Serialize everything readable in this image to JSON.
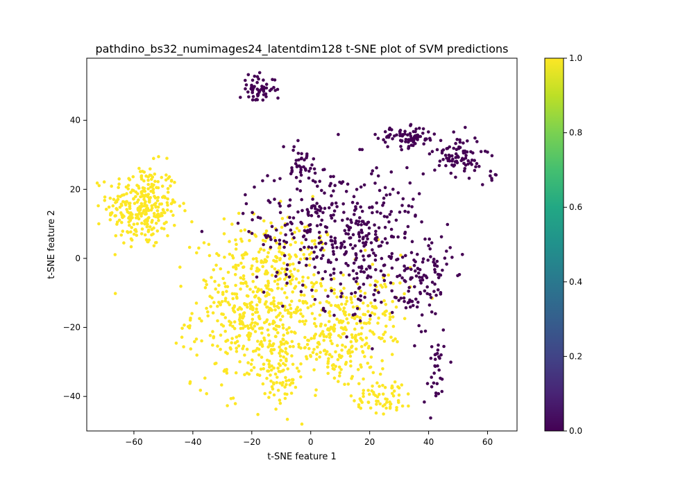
{
  "chart_data": {
    "type": "scatter",
    "title": "pathdino_bs32_numimages24_latentdim128 t-SNE plot of SVM predictions",
    "xlabel": "t-SNE feature 1",
    "ylabel": "t-SNE feature 2",
    "xlim": [
      -76,
      70
    ],
    "ylim": [
      -50,
      58
    ],
    "xticks": [
      -60,
      -40,
      -20,
      0,
      20,
      40,
      60
    ],
    "yticks": [
      -40,
      -20,
      0,
      20,
      40
    ],
    "grid": false,
    "colorbar": {
      "cmap": "viridis",
      "range": [
        0,
        1
      ],
      "ticks": [
        0.0,
        0.2,
        0.4,
        0.6,
        0.8,
        1.0
      ],
      "tick_labels": [
        "0.0",
        "0.2",
        "0.4",
        "0.6",
        "0.8",
        "1.0"
      ]
    },
    "colors": {
      "class0": "#440154",
      "class1": "#fde725"
    },
    "clusters": [
      {
        "value": 1,
        "cx": -57,
        "cy": 15,
        "sx": 6,
        "sy": 6,
        "n": 300
      },
      {
        "value": 1,
        "cx": -18,
        "cy": -15,
        "sx": 11,
        "sy": 11,
        "n": 520
      },
      {
        "value": 1,
        "cx": 8,
        "cy": -22,
        "sx": 9,
        "sy": 8,
        "n": 230
      },
      {
        "value": 1,
        "cx": -10,
        "cy": -33,
        "sx": 3,
        "sy": 5,
        "n": 60
      },
      {
        "value": 1,
        "cx": 25,
        "cy": -40,
        "sx": 5,
        "sy": 2.5,
        "n": 60
      },
      {
        "value": 1,
        "cx": 22,
        "cy": -15,
        "sx": 6,
        "sy": 8,
        "n": 80
      },
      {
        "value": 1,
        "cx": -8,
        "cy": 5,
        "sx": 8,
        "sy": 5,
        "n": 60
      },
      {
        "value": 0,
        "cx": -18,
        "cy": 49,
        "sx": 3,
        "sy": 2,
        "n": 60
      },
      {
        "value": 0,
        "cx": 33,
        "cy": 35,
        "sx": 5,
        "sy": 1.5,
        "n": 80
      },
      {
        "value": 0,
        "cx": 50,
        "cy": 30,
        "sx": 4,
        "sy": 3,
        "n": 90
      },
      {
        "value": 0,
        "cx": 8,
        "cy": 10,
        "sx": 15,
        "sy": 9,
        "n": 330
      },
      {
        "value": 0,
        "cx": 40,
        "cy": -7,
        "sx": 4,
        "sy": 7,
        "n": 80
      },
      {
        "value": 0,
        "cx": 20,
        "cy": -3,
        "sx": 10,
        "sy": 8,
        "n": 120
      },
      {
        "value": 0,
        "cx": 42,
        "cy": -33,
        "sx": 2,
        "sy": 5,
        "n": 30
      },
      {
        "value": 0,
        "cx": -3,
        "cy": 27,
        "sx": 3,
        "sy": 3,
        "n": 30
      },
      {
        "value": 0,
        "cx": 62,
        "cy": 24,
        "sx": 0.8,
        "sy": 0.8,
        "n": 6
      }
    ]
  }
}
